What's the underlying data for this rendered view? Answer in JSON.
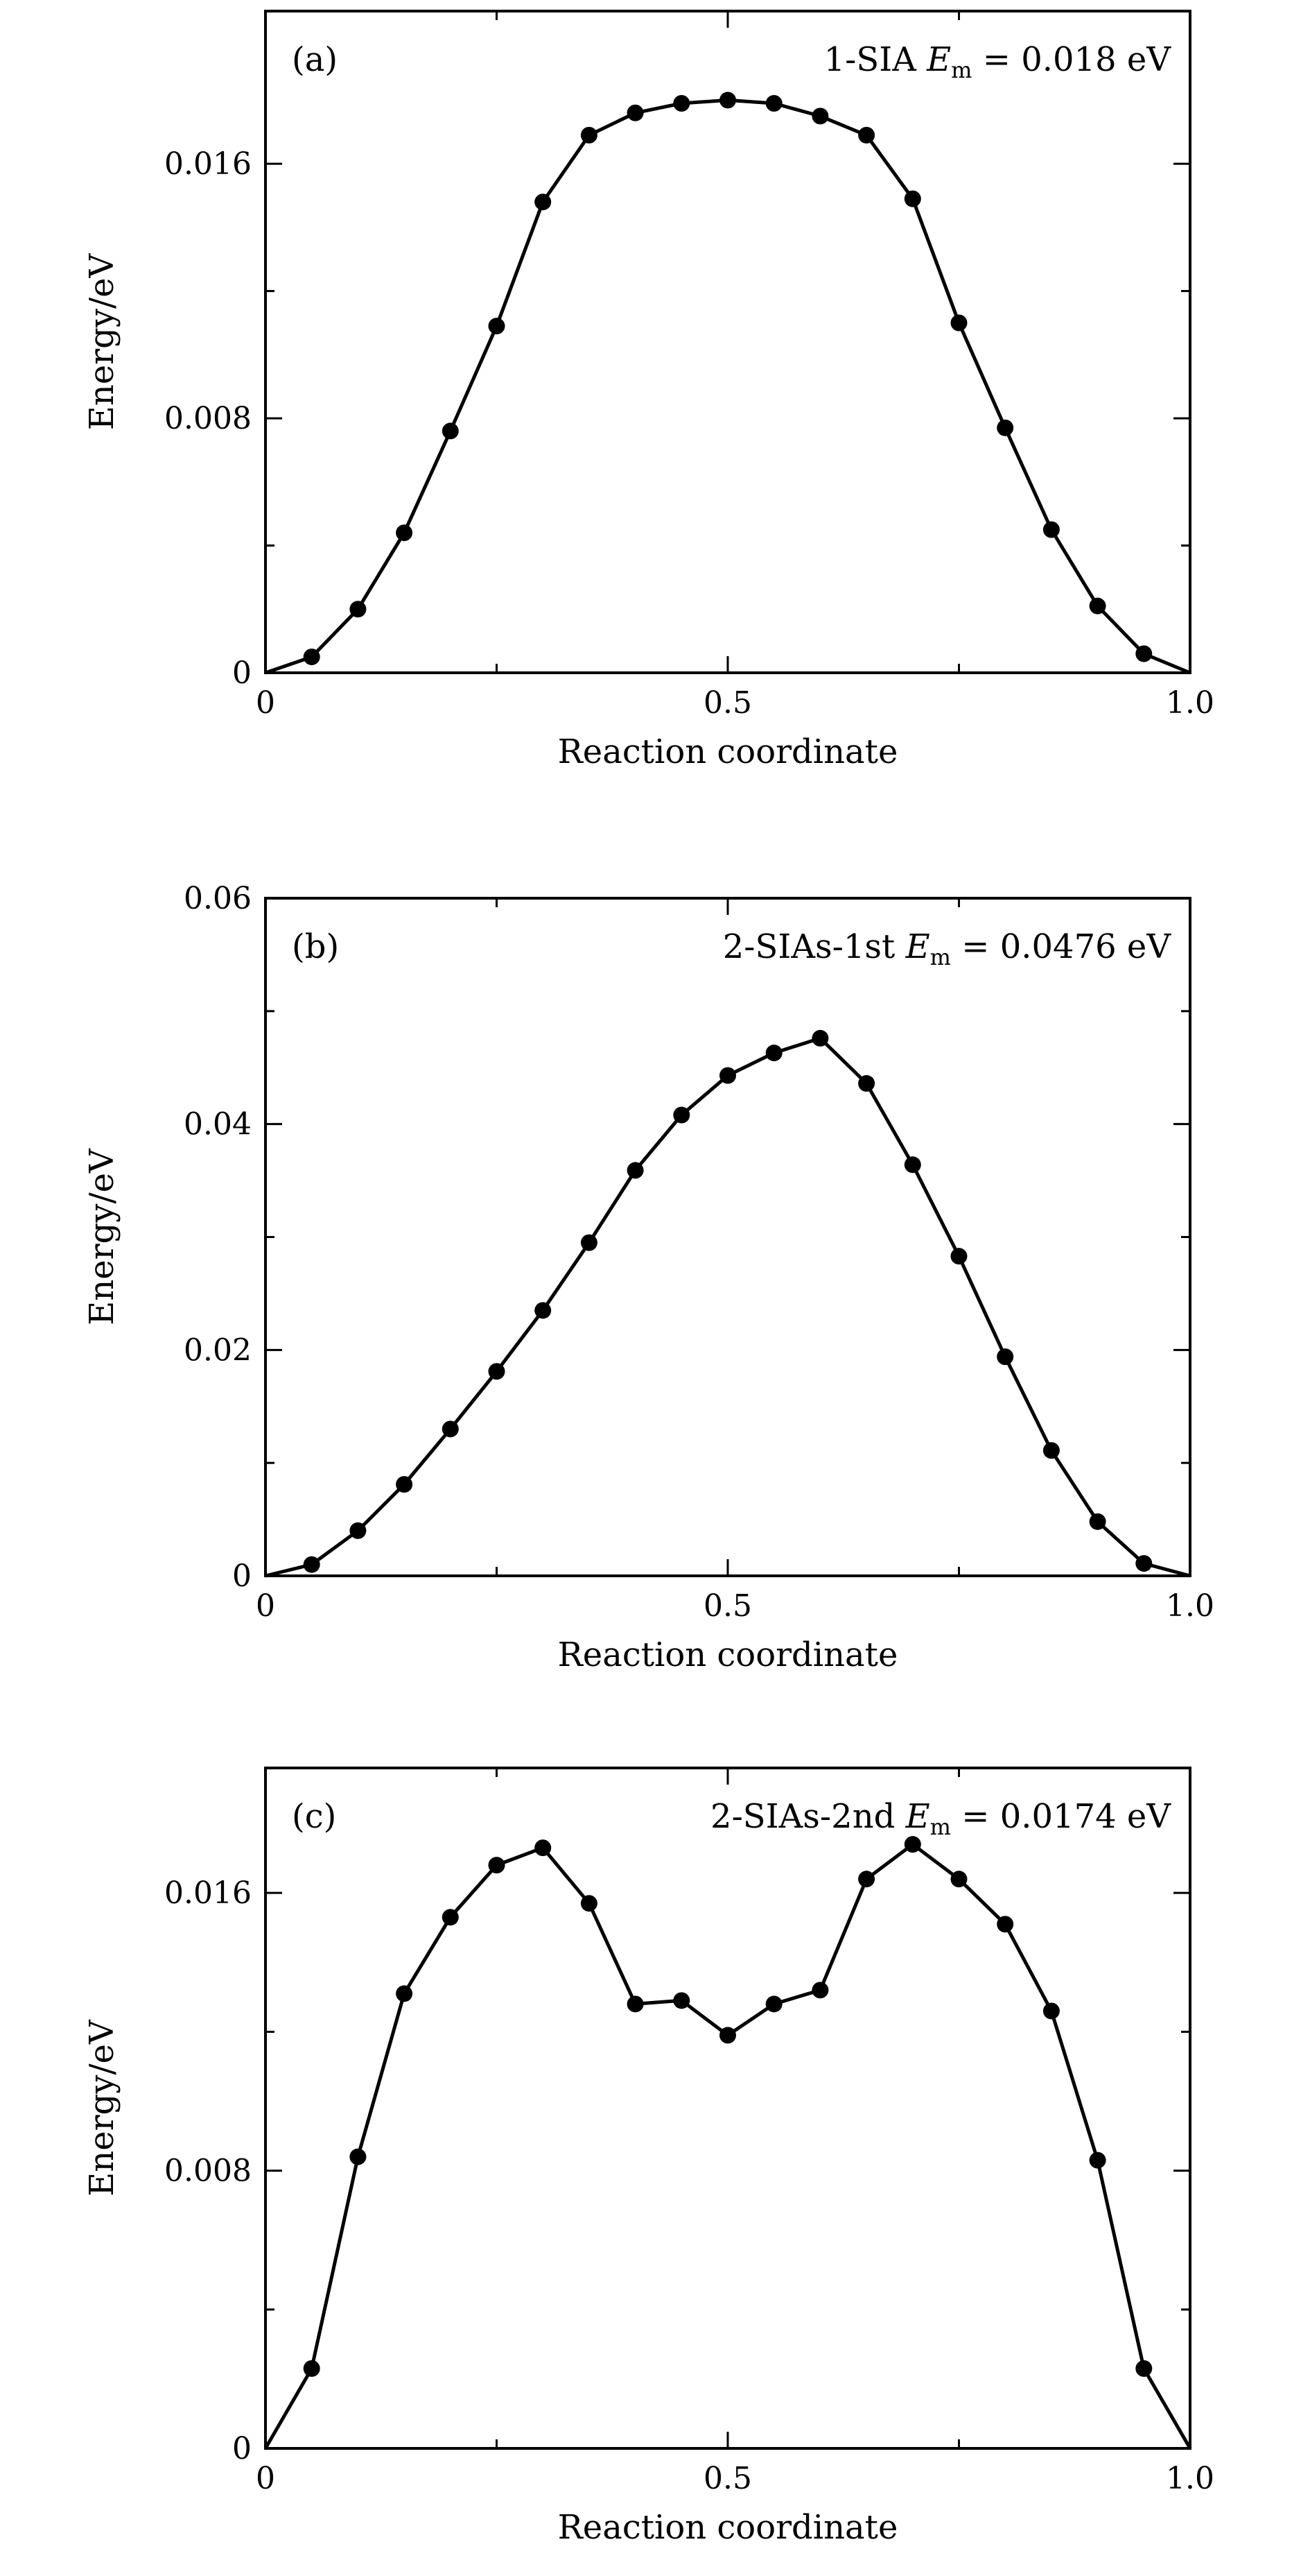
{
  "figure": {
    "chart_data": [
      {
        "type": "line",
        "panel_label": "(a)",
        "annotation": {
          "label": "1-SIA",
          "symbol": "E",
          "subscript": "m",
          "equals": "=",
          "value": "0.018 eV"
        },
        "xlabel": "Reaction coordinate",
        "ylabel": "Energy/eV",
        "xlim": [
          0,
          1.0
        ],
        "ylim": [
          0,
          0.0208
        ],
        "xticks": [
          0,
          0.5,
          1.0
        ],
        "xtick_labels": [
          "0",
          "0.5",
          "1.0"
        ],
        "yticks": [
          0,
          0.008,
          0.016
        ],
        "ytick_labels": [
          "0",
          "0.008",
          "0.016"
        ],
        "x": [
          0,
          0.05,
          0.1,
          0.15,
          0.2,
          0.25,
          0.3,
          0.35,
          0.4,
          0.45,
          0.5,
          0.55,
          0.6,
          0.65,
          0.7,
          0.75,
          0.8,
          0.85,
          0.9,
          0.95,
          1.0
        ],
        "y": [
          0,
          0.0005,
          0.002,
          0.0044,
          0.0076,
          0.0109,
          0.0148,
          0.0169,
          0.0176,
          0.0179,
          0.018,
          0.0179,
          0.0175,
          0.0169,
          0.0149,
          0.011,
          0.0077,
          0.0045,
          0.0021,
          0.0006,
          0
        ],
        "grid": false,
        "legend": "none"
      },
      {
        "type": "line",
        "panel_label": "(b)",
        "annotation": {
          "label": "2-SIAs-1st",
          "symbol": "E",
          "subscript": "m",
          "equals": "=",
          "value": "0.0476 eV"
        },
        "xlabel": "Reaction coordinate",
        "ylabel": "Energy/eV",
        "xlim": [
          0,
          1.0
        ],
        "ylim": [
          0,
          0.06
        ],
        "xticks": [
          0,
          0.5,
          1.0
        ],
        "xtick_labels": [
          "0",
          "0.5",
          "1.0"
        ],
        "yticks": [
          0,
          0.02,
          0.04,
          0.06
        ],
        "ytick_labels": [
          "0",
          "0.02",
          "0.04",
          "0.06"
        ],
        "x": [
          0,
          0.05,
          0.1,
          0.15,
          0.2,
          0.25,
          0.3,
          0.35,
          0.4,
          0.45,
          0.5,
          0.55,
          0.6,
          0.65,
          0.7,
          0.75,
          0.8,
          0.85,
          0.9,
          0.95,
          1.0
        ],
        "y": [
          0,
          0.001,
          0.004,
          0.0081,
          0.013,
          0.0181,
          0.0235,
          0.0295,
          0.0359,
          0.0408,
          0.0443,
          0.0463,
          0.0476,
          0.0436,
          0.0364,
          0.0283,
          0.0194,
          0.0111,
          0.0048,
          0.0011,
          0
        ],
        "grid": false,
        "legend": "none"
      },
      {
        "type": "line",
        "panel_label": "(c)",
        "annotation": {
          "label": "2-SIAs-2nd",
          "symbol": "E",
          "subscript": "m",
          "equals": "=",
          "value": "0.0174 eV"
        },
        "xlabel": "Reaction coordinate",
        "ylabel": "Energy/eV",
        "xlim": [
          0,
          1.0
        ],
        "ylim": [
          0,
          0.0196
        ],
        "xticks": [
          0,
          0.5,
          1.0
        ],
        "xtick_labels": [
          "0",
          "0.5",
          "1.0"
        ],
        "yticks": [
          0,
          0.008,
          0.016
        ],
        "ytick_labels": [
          "0",
          "0.008",
          "0.016"
        ],
        "x": [
          0,
          0.05,
          0.1,
          0.15,
          0.2,
          0.25,
          0.3,
          0.35,
          0.4,
          0.45,
          0.5,
          0.55,
          0.6,
          0.65,
          0.7,
          0.75,
          0.8,
          0.85,
          0.9,
          0.95,
          1.0
        ],
        "y": [
          0,
          0.0023,
          0.0084,
          0.0131,
          0.0153,
          0.0168,
          0.0173,
          0.0157,
          0.0128,
          0.0129,
          0.0119,
          0.0128,
          0.0132,
          0.0164,
          0.0174,
          0.0164,
          0.0151,
          0.0126,
          0.0083,
          0.0023,
          0
        ],
        "grid": false,
        "legend": "none"
      }
    ]
  }
}
